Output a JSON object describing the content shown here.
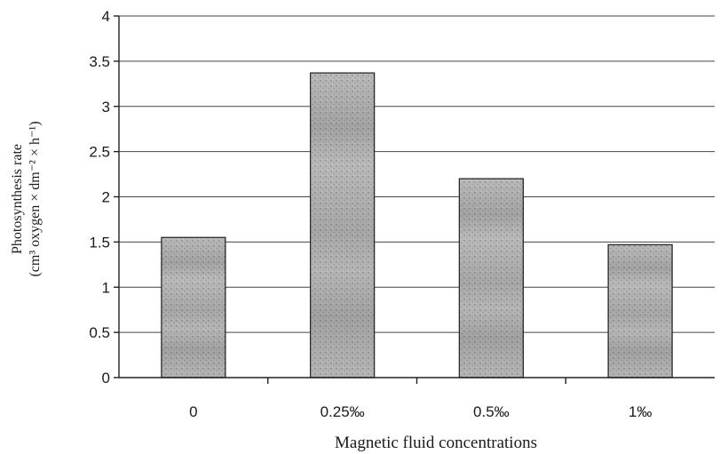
{
  "chart_data": {
    "type": "bar",
    "categories": [
      "0",
      "0.25‰",
      "0.5‰",
      "1‰"
    ],
    "values": [
      1.55,
      3.37,
      2.2,
      1.47
    ],
    "xlabel": "Magnetic fluid concentrations",
    "ylabel_line1": "Photosynthesis rate",
    "ylabel_line2": "(cm³ oxygen × dm⁻² × h⁻¹)",
    "ylim": [
      0,
      4
    ],
    "yticks": [
      "0",
      "0.5",
      "1",
      "1.5",
      "2",
      "2.5",
      "3",
      "3.5",
      "4"
    ],
    "grid": true,
    "legend": "none",
    "bar_color": "#b7b7b7"
  }
}
